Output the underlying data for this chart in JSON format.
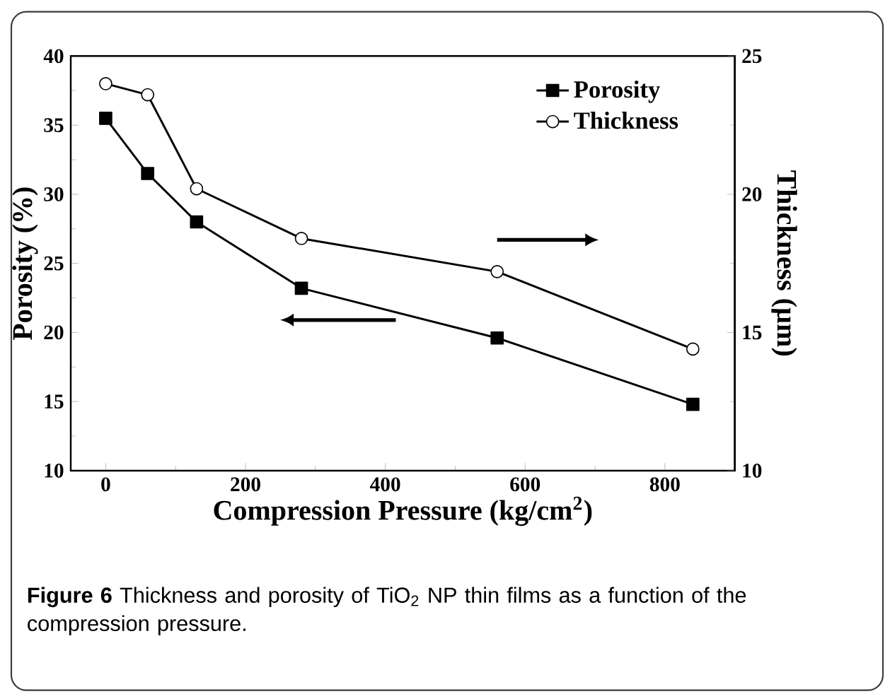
{
  "chart_data": {
    "type": "line",
    "xlabel": "Compression Pressure (kg/cm$^{2}$)",
    "ylabel": "Porosity (%)",
    "y2label": "Thickness (µm)",
    "x": [
      0,
      60,
      130,
      280,
      560,
      840
    ],
    "series": [
      {
        "name": "Porosity",
        "color": "#000000",
        "marker": "square",
        "values": [
          35.5,
          31.5,
          28.0,
          23.2,
          19.6,
          14.8
        ]
      },
      {
        "name": "Thickness",
        "color": "#000000",
        "marker": "circle",
        "axis": "y2",
        "values": [
          24.0,
          23.6,
          20.2,
          18.4,
          17.2,
          14.4
        ]
      }
    ],
    "xlim": [
      -50,
      900
    ],
    "xticks": [
      0,
      200,
      400,
      600,
      800
    ],
    "ylim": [
      10,
      40
    ],
    "yticks": [
      10,
      15,
      20,
      25,
      30,
      35,
      40
    ],
    "y2lim": [
      10,
      25
    ],
    "y2ticks": [
      10,
      15,
      20,
      25
    ],
    "legend": "top right",
    "line_style": "solid",
    "annotations": [
      "**Figure 6** Thickness and porosity of TiO$_{2}$ NP thin films as a function of the compression pressure."
    ]
  }
}
